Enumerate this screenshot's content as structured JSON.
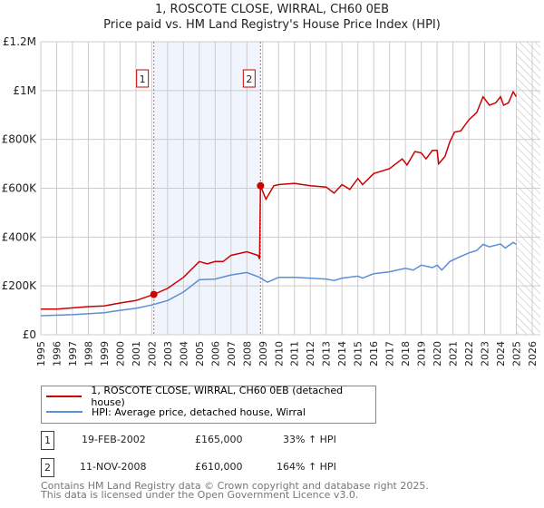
{
  "chart_data": {
    "type": "line",
    "title": "1, ROSCOTE CLOSE, WIRRAL, CH60 0EB",
    "subtitle": "Price paid vs. HM Land Registry's House Price Index (HPI)",
    "xlim": [
      1995,
      2026
    ],
    "ylim": [
      0,
      1200000
    ],
    "y_ticks": [
      {
        "v": 0,
        "label": "£0"
      },
      {
        "v": 200000,
        "label": "£200K"
      },
      {
        "v": 400000,
        "label": "£400K"
      },
      {
        "v": 600000,
        "label": "£600K"
      },
      {
        "v": 800000,
        "label": "£800K"
      },
      {
        "v": 1000000,
        "label": "£1M"
      },
      {
        "v": 1200000,
        "label": "£1.2M"
      }
    ],
    "x_ticks": [
      "1995",
      "1996",
      "1997",
      "1998",
      "1999",
      "2000",
      "2001",
      "2002",
      "2003",
      "2004",
      "2005",
      "2006",
      "2007",
      "2008",
      "2009",
      "2010",
      "2011",
      "2012",
      "2013",
      "2014",
      "2015",
      "2016",
      "2017",
      "2018",
      "2019",
      "2020",
      "2021",
      "2022",
      "2023",
      "2024",
      "2025",
      "2026"
    ],
    "grid": true,
    "series": [
      {
        "name": "1, ROSCOTE CLOSE, WIRRAL, CH60 0EB (detached house)",
        "color": "#cc0000",
        "x": [
          1995,
          1996,
          1997,
          1998,
          1999,
          2000,
          2001,
          2002.13,
          2003,
          2004,
          2005,
          2005.5,
          2006,
          2006.5,
          2007,
          2008,
          2008.7,
          2008.8,
          2008.86,
          2009.2,
          2009.7,
          2010,
          2011,
          2012,
          2013,
          2013.5,
          2014,
          2014.5,
          2015,
          2015.3,
          2016,
          2017,
          2017.8,
          2018.1,
          2018.6,
          2019,
          2019.3,
          2019.7,
          2020,
          2020.1,
          2020.5,
          2020.8,
          2021.1,
          2021.5,
          2022,
          2022.5,
          2022.9,
          2023.3,
          2023.7,
          2024,
          2024.2,
          2024.5,
          2024.8,
          2025
        ],
        "y": [
          105000,
          105000,
          110000,
          115000,
          118000,
          130000,
          140000,
          165000,
          190000,
          235000,
          300000,
          290000,
          300000,
          300000,
          325000,
          340000,
          325000,
          310000,
          610000,
          555000,
          610000,
          615000,
          620000,
          610000,
          605000,
          580000,
          615000,
          595000,
          640000,
          615000,
          660000,
          680000,
          720000,
          695000,
          750000,
          745000,
          720000,
          755000,
          755000,
          700000,
          730000,
          790000,
          830000,
          835000,
          880000,
          910000,
          975000,
          940000,
          950000,
          975000,
          940000,
          950000,
          995000,
          975000
        ]
      },
      {
        "name": "HPI: Average price, detached house, Wirral",
        "color": "#5b8fd4",
        "x": [
          1995,
          1997,
          1999,
          2000,
          2001,
          2002,
          2003,
          2004,
          2005,
          2006,
          2007,
          2008,
          2008.8,
          2009.3,
          2010,
          2011,
          2012,
          2013,
          2013.5,
          2014,
          2015,
          2015.3,
          2016,
          2017,
          2018,
          2018.5,
          2019,
          2019.7,
          2020,
          2020.3,
          2020.8,
          2021.3,
          2022,
          2022.5,
          2022.9,
          2023.3,
          2024,
          2024.3,
          2024.8,
          2025
        ],
        "y": [
          78000,
          82000,
          90000,
          100000,
          108000,
          122000,
          140000,
          175000,
          225000,
          228000,
          245000,
          255000,
          235000,
          215000,
          235000,
          235000,
          232000,
          228000,
          222000,
          232000,
          240000,
          232000,
          250000,
          258000,
          272000,
          265000,
          285000,
          275000,
          285000,
          265000,
          300000,
          315000,
          335000,
          345000,
          370000,
          360000,
          372000,
          355000,
          378000,
          370000
        ]
      }
    ],
    "sales": [
      {
        "id": "1",
        "x": 2002.13,
        "price": 165000,
        "date": "19-FEB-2002",
        "price_label": "£165,000",
        "hpi": "33% ↑ HPI"
      },
      {
        "id": "2",
        "x": 2008.86,
        "price": 610000,
        "date": "11-NOV-2008",
        "price_label": "£610,000",
        "hpi": "164% ↑ HPI"
      }
    ],
    "forecast_from": 2025.0
  },
  "footer": {
    "line1": "Contains HM Land Registry data © Crown copyright and database right 2025.",
    "line2": "This data is licensed under the Open Government Licence v3.0."
  }
}
